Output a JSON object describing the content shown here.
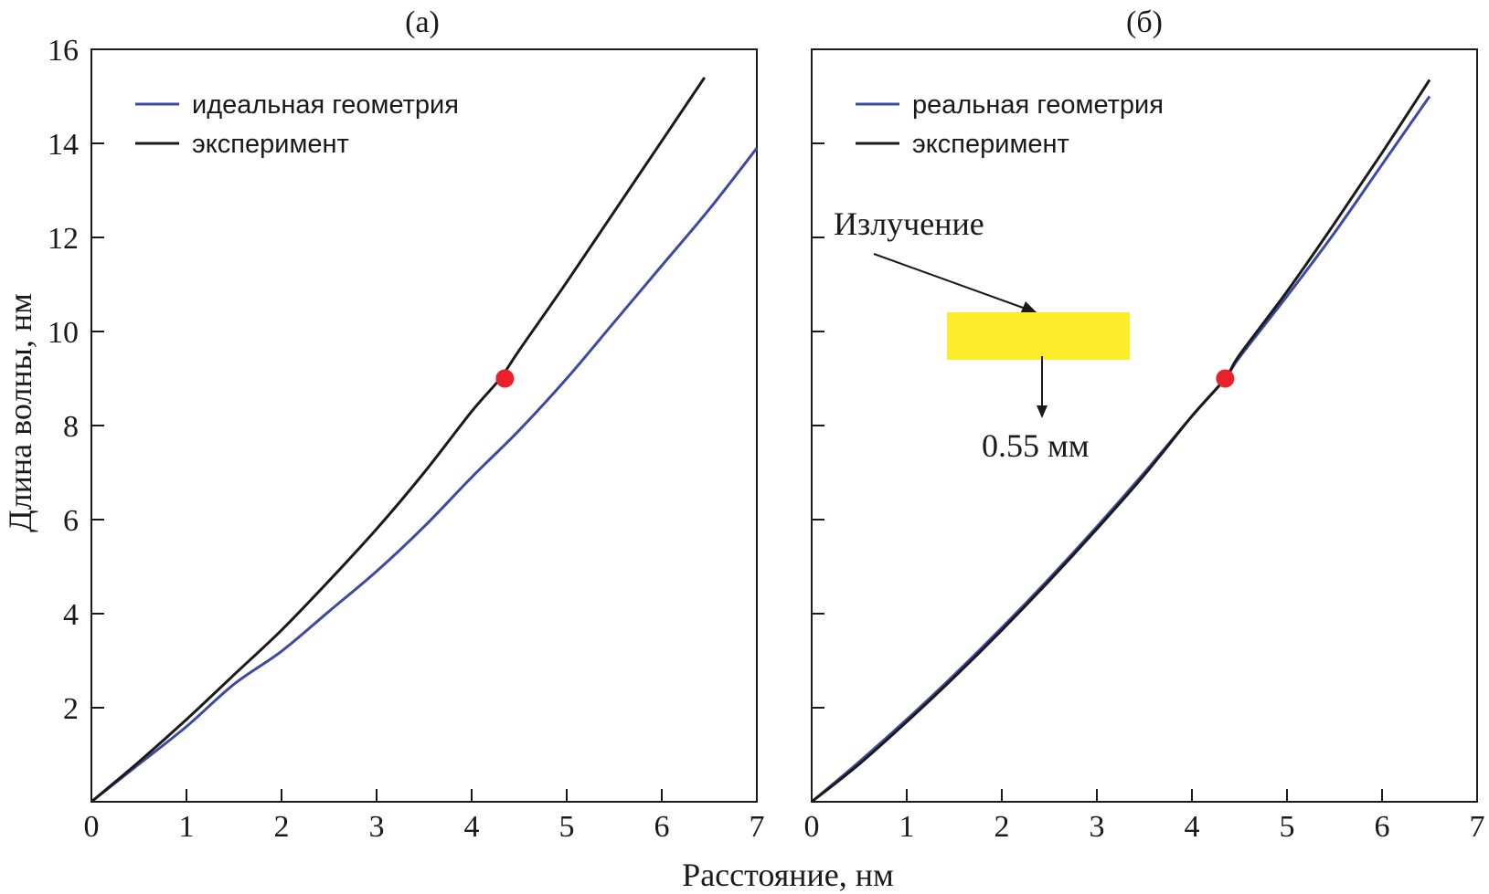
{
  "chart_data": {
    "type": "line",
    "shared": {
      "xlabel": "Расстояние, нм",
      "ylabel": "Длина волны, нм",
      "xlim": [
        0,
        7
      ],
      "ylim": [
        0,
        16
      ],
      "x_ticks": [
        "0",
        "1",
        "2",
        "3",
        "4",
        "5",
        "6",
        "7"
      ],
      "y_ticks": [
        "2",
        "4",
        "6",
        "8",
        "10",
        "12",
        "14",
        "16"
      ],
      "grid": false,
      "legend_position": "top-left"
    },
    "panels": [
      {
        "title": "(а)",
        "series": [
          {
            "name": "идеальная геометрия",
            "color": "#3c4aa0",
            "x": [
              0,
              0.5,
              1,
              1.5,
              2,
              2.5,
              3,
              3.5,
              4,
              4.5,
              5,
              5.5,
              6,
              6.5,
              7
            ],
            "y": [
              0,
              0.8,
              1.6,
              2.5,
              3.2,
              4.05,
              4.9,
              5.85,
              6.9,
              7.9,
              9.0,
              10.2,
              11.4,
              12.6,
              13.9
            ]
          },
          {
            "name": "эксперимент",
            "color": "#1a1a1a",
            "x": [
              0,
              0.5,
              1,
              1.5,
              2,
              2.5,
              3,
              3.5,
              4,
              4.3,
              4.5,
              5,
              5.5,
              6,
              6.45
            ],
            "y": [
              0,
              0.85,
              1.75,
              2.7,
              3.65,
              4.7,
              5.8,
              7.0,
              8.3,
              9.0,
              9.6,
              11.05,
              12.55,
              14.05,
              15.4
            ]
          }
        ],
        "marker": {
          "x": 4.35,
          "y": 9.0,
          "color": "#e8212a"
        }
      },
      {
        "title": "(б)",
        "series": [
          {
            "name": "реальная геометрия",
            "color": "#3c4aa0",
            "x": [
              0,
              0.5,
              1,
              1.5,
              2,
              2.5,
              3,
              3.5,
              4,
              4.35,
              4.5,
              5,
              5.5,
              6,
              6.5
            ],
            "y": [
              0,
              0.85,
              1.75,
              2.7,
              3.7,
              4.75,
              5.85,
              7.0,
              8.2,
              9.0,
              9.45,
              10.75,
              12.1,
              13.55,
              15.0
            ]
          },
          {
            "name": "эксперимент",
            "color": "#1a1a1a",
            "x": [
              0,
              0.5,
              1,
              1.5,
              2,
              2.5,
              3,
              3.5,
              4,
              4.35,
              4.5,
              5,
              5.5,
              6,
              6.5
            ],
            "y": [
              0,
              0.8,
              1.7,
              2.65,
              3.65,
              4.7,
              5.8,
              6.95,
              8.2,
              9.0,
              9.5,
              10.85,
              12.3,
              13.8,
              15.35
            ]
          }
        ],
        "marker": {
          "x": 4.35,
          "y": 9.0,
          "color": "#e8212a"
        },
        "annotation": {
          "label": "Излучение",
          "size_label": "0.55 мм",
          "bar_color": "#fcec2c"
        }
      }
    ]
  }
}
